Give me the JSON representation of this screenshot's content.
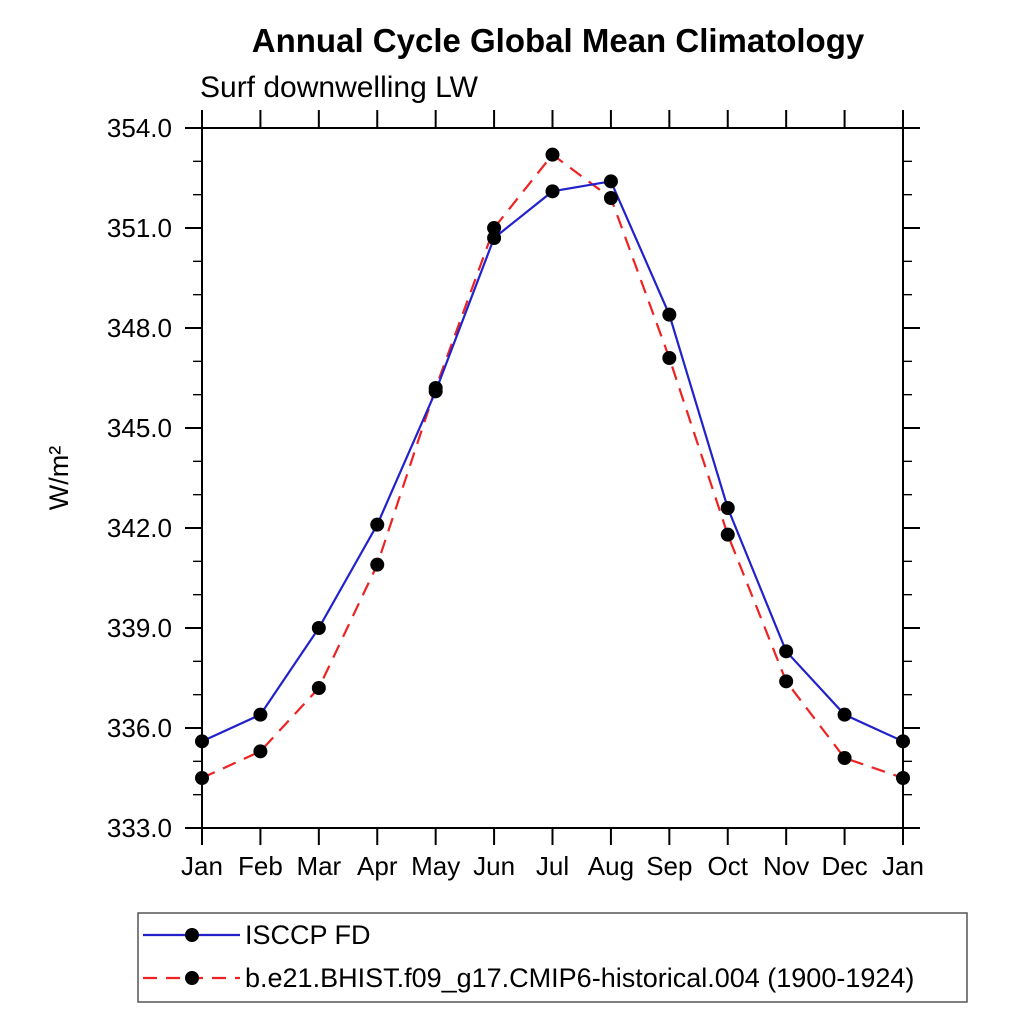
{
  "title": "Annual Cycle Global Mean Climatology",
  "subtitle": "Surf downwelling LW",
  "y_axis": {
    "label": "W/m²",
    "tick_labels": [
      "333.0",
      "336.0",
      "339.0",
      "342.0",
      "345.0",
      "348.0",
      "351.0",
      "354.0"
    ]
  },
  "x_axis": {
    "tick_labels": [
      "Jan",
      "Feb",
      "Mar",
      "Apr",
      "May",
      "Jun",
      "Jul",
      "Aug",
      "Sep",
      "Oct",
      "Nov",
      "Dec",
      "Jan"
    ]
  },
  "legend": {
    "entries": [
      {
        "label": "ISCCP FD",
        "line": "blue-solid",
        "marker": "black-dot"
      },
      {
        "label": "b.e21.BHIST.f09_g17.CMIP6-historical.004 (1900-1924)",
        "line": "red-dashed",
        "marker": "black-dot"
      }
    ]
  },
  "colors": {
    "series1_line": "#2222cc",
    "series2_line": "#ee2222",
    "marker": "#000000",
    "axis": "#000000"
  },
  "chart_data": {
    "type": "line",
    "title": "Annual Cycle Global Mean Climatology",
    "subtitle": "Surf downwelling LW",
    "xlabel": "",
    "ylabel": "W/m²",
    "ylim": [
      333.0,
      354.0
    ],
    "ytick_major_step": 3.0,
    "ytick_minor_step": 1.0,
    "grid": false,
    "legend_position": "bottom-left framed box",
    "categories": [
      "Jan",
      "Feb",
      "Mar",
      "Apr",
      "May",
      "Jun",
      "Jul",
      "Aug",
      "Sep",
      "Oct",
      "Nov",
      "Dec",
      "Jan"
    ],
    "series": [
      {
        "name": "ISCCP FD",
        "color": "#2222cc",
        "line_style": "solid",
        "marker": "filled-circle",
        "marker_color": "#000000",
        "values": [
          335.6,
          336.4,
          339.0,
          342.1,
          346.1,
          350.7,
          352.1,
          352.4,
          348.4,
          342.6,
          338.3,
          336.4,
          335.6
        ]
      },
      {
        "name": "b.e21.BHIST.f09_g17.CMIP6-historical.004 (1900-1924)",
        "color": "#ee2222",
        "line_style": "dashed",
        "marker": "filled-circle",
        "marker_color": "#000000",
        "values": [
          334.5,
          335.3,
          337.2,
          340.9,
          346.2,
          351.0,
          353.2,
          351.9,
          347.1,
          341.8,
          337.4,
          335.1,
          334.5
        ]
      }
    ]
  }
}
